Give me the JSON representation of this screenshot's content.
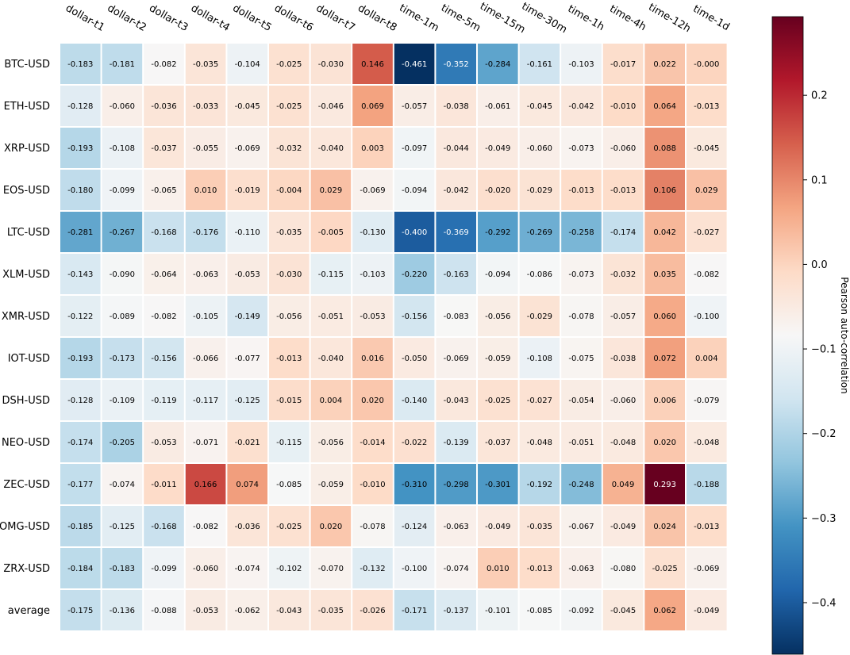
{
  "chart_data": {
    "type": "heatmap",
    "columns": [
      "dollar-t1",
      "dollar-t2",
      "dollar-t3",
      "dollar-t4",
      "dollar-t5",
      "dollar-t6",
      "dollar-t7",
      "dollar-t8",
      "time-1m",
      "time-5m",
      "time-15m",
      "time-30m",
      "time-1h",
      "time-4h",
      "time-12h",
      "time-1d"
    ],
    "rows": [
      "BTC-USD",
      "ETH-USD",
      "XRP-USD",
      "EOS-USD",
      "LTC-USD",
      "XLM-USD",
      "XMR-USD",
      "IOT-USD",
      "DSH-USD",
      "NEO-USD",
      "ZEC-USD",
      "OMG-USD",
      "ZRX-USD",
      "average"
    ],
    "values": [
      [
        -0.183,
        -0.181,
        -0.082,
        -0.035,
        -0.104,
        -0.025,
        -0.03,
        0.146,
        -0.461,
        -0.352,
        -0.284,
        -0.161,
        -0.103,
        -0.017,
        0.022,
        -0.0
      ],
      [
        -0.128,
        -0.06,
        -0.036,
        -0.033,
        -0.045,
        -0.025,
        -0.046,
        0.069,
        -0.057,
        -0.038,
        -0.061,
        -0.045,
        -0.042,
        -0.01,
        0.064,
        -0.013
      ],
      [
        -0.193,
        -0.108,
        -0.037,
        -0.055,
        -0.069,
        -0.032,
        -0.04,
        0.003,
        -0.097,
        -0.044,
        -0.049,
        -0.06,
        -0.073,
        -0.06,
        0.088,
        -0.045
      ],
      [
        -0.18,
        -0.099,
        -0.065,
        0.01,
        -0.019,
        -0.004,
        0.029,
        -0.069,
        -0.094,
        -0.042,
        -0.02,
        -0.029,
        -0.013,
        -0.013,
        0.106,
        0.029
      ],
      [
        -0.281,
        -0.267,
        -0.168,
        -0.176,
        -0.11,
        -0.035,
        -0.005,
        -0.13,
        -0.4,
        -0.369,
        -0.292,
        -0.269,
        -0.258,
        -0.174,
        0.042,
        -0.027
      ],
      [
        -0.143,
        -0.09,
        -0.064,
        -0.063,
        -0.053,
        -0.03,
        -0.115,
        -0.103,
        -0.22,
        -0.163,
        -0.094,
        -0.086,
        -0.073,
        -0.032,
        0.035,
        -0.082
      ],
      [
        -0.122,
        -0.089,
        -0.082,
        -0.105,
        -0.149,
        -0.056,
        -0.051,
        -0.053,
        -0.156,
        -0.083,
        -0.056,
        -0.029,
        -0.078,
        -0.057,
        0.06,
        -0.1
      ],
      [
        -0.193,
        -0.173,
        -0.156,
        -0.066,
        -0.077,
        -0.013,
        -0.04,
        0.016,
        -0.05,
        -0.069,
        -0.059,
        -0.108,
        -0.075,
        -0.038,
        0.072,
        0.004
      ],
      [
        -0.128,
        -0.109,
        -0.119,
        -0.117,
        -0.125,
        -0.015,
        0.004,
        0.02,
        -0.14,
        -0.043,
        -0.025,
        -0.027,
        -0.054,
        -0.06,
        0.006,
        -0.079
      ],
      [
        -0.174,
        -0.205,
        -0.053,
        -0.071,
        -0.021,
        -0.115,
        -0.056,
        -0.014,
        -0.022,
        -0.139,
        -0.037,
        -0.048,
        -0.051,
        -0.048,
        0.02,
        -0.048
      ],
      [
        -0.177,
        -0.074,
        -0.011,
        0.166,
        0.074,
        -0.085,
        -0.059,
        -0.01,
        -0.31,
        -0.298,
        -0.301,
        -0.192,
        -0.248,
        0.049,
        0.293,
        -0.188
      ],
      [
        -0.185,
        -0.125,
        -0.168,
        -0.082,
        -0.036,
        -0.025,
        0.02,
        -0.078,
        -0.124,
        -0.063,
        -0.049,
        -0.035,
        -0.067,
        -0.049,
        0.024,
        -0.013
      ],
      [
        -0.184,
        -0.183,
        -0.099,
        -0.06,
        -0.074,
        -0.102,
        -0.07,
        -0.132,
        -0.1,
        -0.074,
        0.01,
        -0.013,
        -0.063,
        -0.08,
        -0.025,
        -0.069
      ],
      [
        -0.175,
        -0.136,
        -0.088,
        -0.053,
        -0.062,
        -0.043,
        -0.035,
        -0.026,
        -0.171,
        -0.137,
        -0.101,
        -0.085,
        -0.092,
        -0.045,
        0.062,
        -0.049
      ]
    ],
    "value_labels": [
      [
        "-0.183",
        "-0.181",
        "-0.082",
        "-0.035",
        "-0.104",
        "-0.025",
        "-0.030",
        "0.146",
        "-0.461",
        "-0.352",
        "-0.284",
        "-0.161",
        "-0.103",
        "-0.017",
        "0.022",
        "-0.000"
      ],
      [
        "-0.128",
        "-0.060",
        "-0.036",
        "-0.033",
        "-0.045",
        "-0.025",
        "-0.046",
        "0.069",
        "-0.057",
        "-0.038",
        "-0.061",
        "-0.045",
        "-0.042",
        "-0.010",
        "0.064",
        "-0.013"
      ],
      [
        "-0.193",
        "-0.108",
        "-0.037",
        "-0.055",
        "-0.069",
        "-0.032",
        "-0.040",
        "0.003",
        "-0.097",
        "-0.044",
        "-0.049",
        "-0.060",
        "-0.073",
        "-0.060",
        "0.088",
        "-0.045"
      ],
      [
        "-0.180",
        "-0.099",
        "-0.065",
        "0.010",
        "-0.019",
        "-0.004",
        "0.029",
        "-0.069",
        "-0.094",
        "-0.042",
        "-0.020",
        "-0.029",
        "-0.013",
        "-0.013",
        "0.106",
        "0.029"
      ],
      [
        "-0.281",
        "-0.267",
        "-0.168",
        "-0.176",
        "-0.110",
        "-0.035",
        "-0.005",
        "-0.130",
        "-0.400",
        "-0.369",
        "-0.292",
        "-0.269",
        "-0.258",
        "-0.174",
        "0.042",
        "-0.027"
      ],
      [
        "-0.143",
        "-0.090",
        "-0.064",
        "-0.063",
        "-0.053",
        "-0.030",
        "-0.115",
        "-0.103",
        "-0.220",
        "-0.163",
        "-0.094",
        "-0.086",
        "-0.073",
        "-0.032",
        "0.035",
        "-0.082"
      ],
      [
        "-0.122",
        "-0.089",
        "-0.082",
        "-0.105",
        "-0.149",
        "-0.056",
        "-0.051",
        "-0.053",
        "-0.156",
        "-0.083",
        "-0.056",
        "-0.029",
        "-0.078",
        "-0.057",
        "0.060",
        "-0.100"
      ],
      [
        "-0.193",
        "-0.173",
        "-0.156",
        "-0.066",
        "-0.077",
        "-0.013",
        "-0.040",
        "0.016",
        "-0.050",
        "-0.069",
        "-0.059",
        "-0.108",
        "-0.075",
        "-0.038",
        "0.072",
        "0.004"
      ],
      [
        "-0.128",
        "-0.109",
        "-0.119",
        "-0.117",
        "-0.125",
        "-0.015",
        "0.004",
        "0.020",
        "-0.140",
        "-0.043",
        "-0.025",
        "-0.027",
        "-0.054",
        "-0.060",
        "0.006",
        "-0.079"
      ],
      [
        "-0.174",
        "-0.205",
        "-0.053",
        "-0.071",
        "-0.021",
        "-0.115",
        "-0.056",
        "-0.014",
        "-0.022",
        "-0.139",
        "-0.037",
        "-0.048",
        "-0.051",
        "-0.048",
        "0.020",
        "-0.048"
      ],
      [
        "-0.177",
        "-0.074",
        "-0.011",
        "0.166",
        "0.074",
        "-0.085",
        "-0.059",
        "-0.010",
        "-0.310",
        "-0.298",
        "-0.301",
        "-0.192",
        "-0.248",
        "0.049",
        "0.293",
        "-0.188"
      ],
      [
        "-0.185",
        "-0.125",
        "-0.168",
        "-0.082",
        "-0.036",
        "-0.025",
        "0.020",
        "-0.078",
        "-0.124",
        "-0.063",
        "-0.049",
        "-0.035",
        "-0.067",
        "-0.049",
        "0.024",
        "-0.013"
      ],
      [
        "-0.184",
        "-0.183",
        "-0.099",
        "-0.060",
        "-0.074",
        "-0.102",
        "-0.070",
        "-0.132",
        "-0.100",
        "-0.074",
        "0.010",
        "-0.013",
        "-0.063",
        "-0.080",
        "-0.025",
        "-0.069"
      ],
      [
        "-0.175",
        "-0.136",
        "-0.088",
        "-0.053",
        "-0.062",
        "-0.043",
        "-0.035",
        "-0.026",
        "-0.171",
        "-0.137",
        "-0.101",
        "-0.085",
        "-0.092",
        "-0.045",
        "0.062",
        "-0.049"
      ]
    ],
    "colorbar": {
      "label": "Pearson auto-correlation",
      "colormap": "RdBu_r",
      "vmin": -0.461,
      "vmax": 0.293,
      "ticks": [
        0.2,
        0.1,
        0.0,
        -0.1,
        -0.2,
        -0.3,
        -0.4
      ],
      "tick_labels": [
        "0.2",
        "0.1",
        "0.0",
        "−0.1",
        "−0.2",
        "−0.3",
        "−0.4"
      ]
    },
    "column_labels_position": "top",
    "grid": false
  }
}
